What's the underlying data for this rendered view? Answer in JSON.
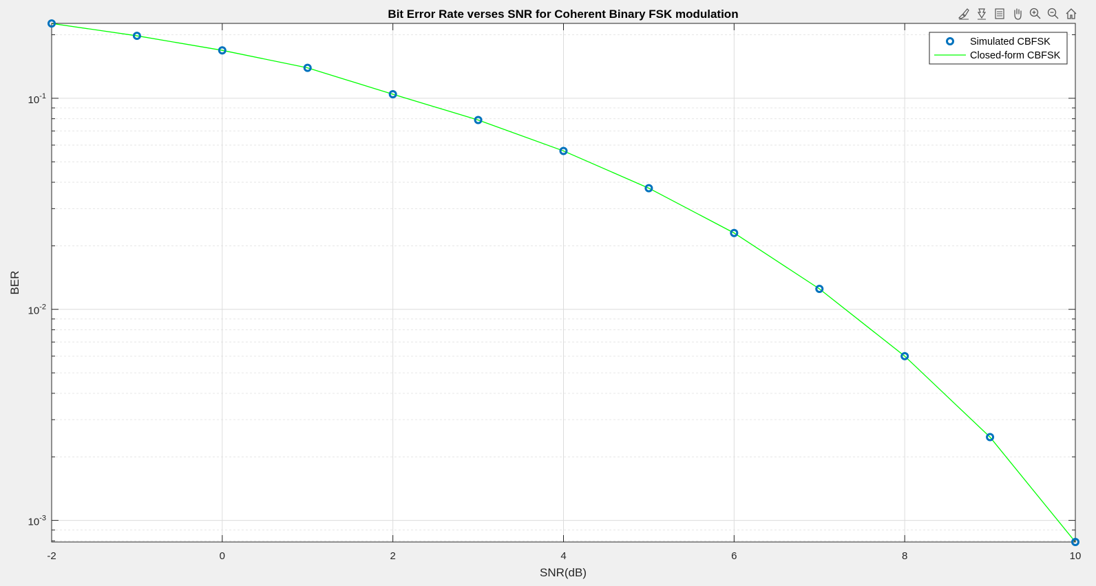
{
  "toolbar": {
    "icons": [
      "brush-icon",
      "data-tip-icon",
      "restore-view-icon",
      "pan-icon",
      "zoom-in-icon",
      "zoom-out-icon",
      "home-icon"
    ]
  },
  "colors": {
    "simulated_marker": "#0072bd",
    "closed_form_line": "#00ff00",
    "grid_major": "#dcdcdc",
    "grid_minor": "#e6e6e6"
  },
  "chart_data": {
    "type": "line",
    "title": "Bit Error Rate verses SNR for Coherent Binary FSK modulation",
    "xlabel": "SNR(dB)",
    "ylabel": "BER",
    "xlim": [
      -2,
      10
    ],
    "ylim": [
      0.00079,
      0.2264
    ],
    "yscale": "log",
    "grid": true,
    "x_ticks": [
      -2,
      0,
      2,
      4,
      6,
      8,
      10
    ],
    "x_tick_labels": [
      "-2",
      "0",
      "2",
      "4",
      "6",
      "8",
      "10"
    ],
    "y_ticks": [
      0.001,
      0.01,
      0.1
    ],
    "y_tick_labels": [
      {
        "base": "10",
        "exp": "-3"
      },
      {
        "base": "10",
        "exp": "-2"
      },
      {
        "base": "10",
        "exp": "-1"
      }
    ],
    "legend_position": "top-right",
    "x": [
      -2,
      -1,
      0,
      1,
      2,
      3,
      4,
      5,
      6,
      7,
      8,
      9,
      10
    ],
    "series": [
      {
        "name": "Simulated CBFSK",
        "style": "markers",
        "values": [
          0.2262,
          0.1977,
          0.1687,
          0.1394,
          0.1045,
          0.0789,
          0.0563,
          0.0375,
          0.023,
          0.0125,
          0.006,
          0.00248,
          0.00079
        ]
      },
      {
        "name": "Closed-form CBFSK",
        "style": "line",
        "values": [
          0.2262,
          0.1977,
          0.1687,
          0.1394,
          0.1045,
          0.0789,
          0.0563,
          0.0375,
          0.023,
          0.0125,
          0.006,
          0.00248,
          0.00079
        ]
      }
    ]
  }
}
